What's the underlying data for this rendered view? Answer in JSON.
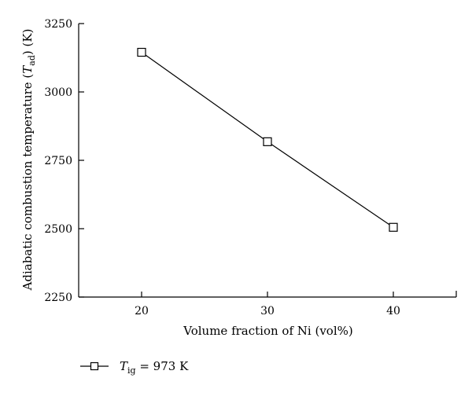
{
  "chart_data": {
    "type": "line",
    "xlabel": "Volume fraction of Ni (vol%)",
    "ylabel": {
      "prefix": "Adiabatic combustion temperature (",
      "symbol": "T",
      "subscript": "ad",
      "suffix": ") (K)"
    },
    "xlim": [
      15,
      45
    ],
    "ylim": [
      2250,
      3250
    ],
    "xticks": [
      20,
      30,
      40
    ],
    "yticks": [
      2250,
      2500,
      2750,
      3000,
      3250
    ],
    "series": [
      {
        "legend": {
          "symbol": "T",
          "subscript": "ig",
          "suffix": " = 973 K"
        },
        "marker": "square-open",
        "color": "#000000",
        "x": [
          20,
          30,
          40
        ],
        "y": [
          3145,
          2818,
          2505
        ]
      }
    ],
    "grid": false,
    "legend_position": "bottom-left"
  }
}
